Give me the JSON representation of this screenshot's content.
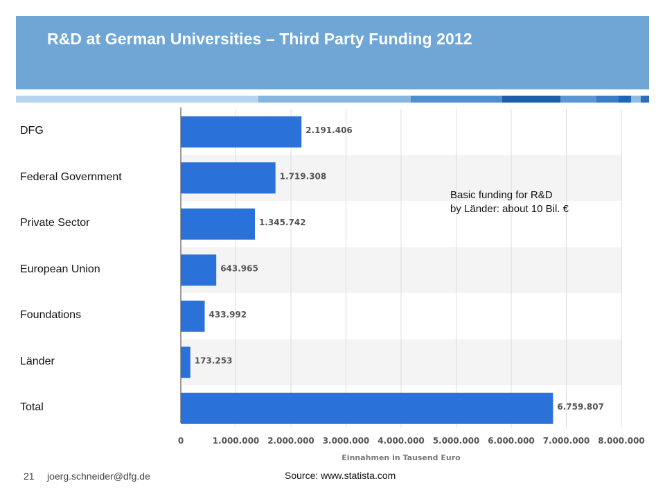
{
  "slide": {
    "title": "R&D at German Universities – Third Party Funding 2012",
    "page_number": "21",
    "email": "joerg.schneider@dfg.de",
    "source": "Source: www.statista.com",
    "header_color": "#6fa6d6"
  },
  "annotation": {
    "line1": "Basic funding for R&D",
    "line2": "by Länder: about 10 Bil. €"
  },
  "chart_data": {
    "type": "bar",
    "orientation": "horizontal",
    "categories": [
      "DFG",
      "Federal Government",
      "Private Sector",
      "European Union",
      "Foundations",
      "Länder",
      "Total"
    ],
    "values": [
      2191406,
      1719308,
      1345742,
      643965,
      433992,
      173253,
      6759807
    ],
    "value_labels": [
      "2.191.406",
      "1.719.308",
      "1.345.742",
      "643.965",
      "433.992",
      "173.253",
      "6.759.807"
    ],
    "xlabel": "Einnahmen in Tausend Euro",
    "xlim": [
      0,
      8000000
    ],
    "xticks": [
      0,
      1000000,
      2000000,
      3000000,
      4000000,
      5000000,
      6000000,
      7000000,
      8000000
    ],
    "xtick_labels": [
      "0",
      "1.000.000",
      "2.000.000",
      "3.000.000",
      "4.000.000",
      "5.000.000",
      "6.000.000",
      "7.000.000",
      "8.000.000"
    ],
    "grid": true,
    "bar_color": "#2a72d9"
  }
}
